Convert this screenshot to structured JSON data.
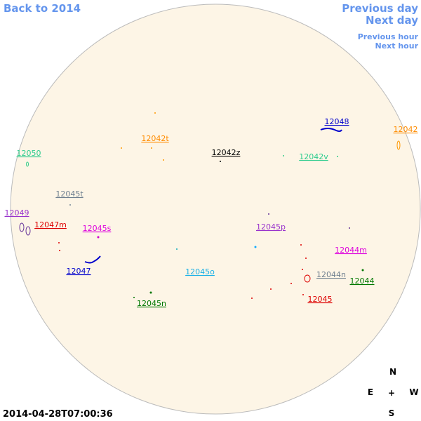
{
  "nav": {
    "back": "Back to 2014",
    "previous_day": "Previous day",
    "next_day": "Next day",
    "previous_hour": "Previous hour",
    "next_hour": "Next hour"
  },
  "regions": [
    "12048",
    "12042",
    "12042t",
    "12042z",
    "12050",
    "12042v",
    "12045t",
    "12049",
    "12047m",
    "12045s",
    "12045p",
    "12044m",
    "12047",
    "12045o",
    "12044n",
    "12044",
    "12045",
    "12045n"
  ],
  "compass": {
    "north": "N",
    "east": "E",
    "center": "+",
    "west": "W",
    "south": "S"
  },
  "timestamp": "2014-04-28T07:00:36"
}
